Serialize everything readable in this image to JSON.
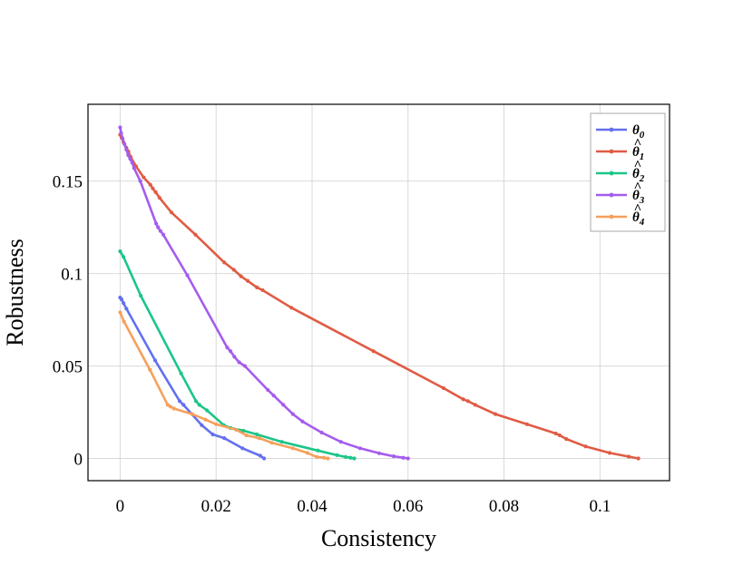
{
  "chart_data": {
    "type": "line",
    "xlabel": "Consistency",
    "ylabel": "Robustness",
    "xlim": [
      -0.0067,
      0.1145
    ],
    "ylim": [
      -0.012,
      0.1915
    ],
    "xticks": [
      0,
      0.02,
      0.04,
      0.06,
      0.08,
      0.1
    ],
    "xtick_labels": [
      "0",
      "0.02",
      "0.04",
      "0.06",
      "0.08",
      "0.1"
    ],
    "yticks": [
      0,
      0.05,
      0.1,
      0.15
    ],
    "ytick_labels": [
      "0",
      "0.05",
      "0.1",
      "0.15"
    ],
    "grid": true,
    "legend_position": "top-right",
    "series": [
      {
        "name": "θ0",
        "symbol": "θ",
        "hat": false,
        "sub": "0",
        "color": "#6470ef",
        "x": [
          0,
          0.0003,
          0.0007,
          0.0013,
          0.0073,
          0.0124,
          0.0132,
          0.017,
          0.0193,
          0.0217,
          0.0255,
          0.0292,
          0.03
        ],
        "y": [
          0.087,
          0.086,
          0.084,
          0.081,
          0.053,
          0.031,
          0.029,
          0.018,
          0.013,
          0.011,
          0.0055,
          0.0015,
          0.0
        ]
      },
      {
        "name": "θ̂1",
        "symbol": "θ",
        "hat": true,
        "sub": "1",
        "color": "#e05b44",
        "x": [
          0,
          0.0003,
          0.0007,
          0.0013,
          0.0017,
          0.0022,
          0.0033,
          0.0049,
          0.0063,
          0.0068,
          0.0074,
          0.0082,
          0.0107,
          0.0157,
          0.0217,
          0.0237,
          0.0252,
          0.0266,
          0.0285,
          0.0297,
          0.0357,
          0.0528,
          0.0674,
          0.0715,
          0.0725,
          0.074,
          0.0782,
          0.0848,
          0.0908,
          0.0916,
          0.093,
          0.097,
          0.102,
          0.106,
          0.108
        ],
        "y": [
          0.175,
          0.1735,
          0.171,
          0.168,
          0.166,
          0.163,
          0.158,
          0.152,
          0.148,
          0.146,
          0.144,
          0.141,
          0.133,
          0.121,
          0.106,
          0.102,
          0.0985,
          0.096,
          0.0925,
          0.091,
          0.0815,
          0.058,
          0.038,
          0.032,
          0.031,
          0.029,
          0.024,
          0.0185,
          0.0135,
          0.0125,
          0.0105,
          0.0065,
          0.003,
          0.001,
          0.0
        ]
      },
      {
        "name": "θ̂2",
        "symbol": "θ",
        "hat": true,
        "sub": "2",
        "color": "#1bc687",
        "x": [
          0,
          0.0007,
          0.0043,
          0.0127,
          0.0158,
          0.0165,
          0.0181,
          0.0216,
          0.023,
          0.0257,
          0.0285,
          0.0337,
          0.0412,
          0.0452,
          0.047,
          0.048,
          0.0488
        ],
        "y": [
          0.112,
          0.109,
          0.088,
          0.046,
          0.031,
          0.029,
          0.026,
          0.018,
          0.0165,
          0.015,
          0.013,
          0.009,
          0.0043,
          0.0018,
          0.0008,
          0.0004,
          0.0
        ]
      },
      {
        "name": "θ̂3",
        "symbol": "θ",
        "hat": true,
        "sub": "3",
        "color": "#a55cee",
        "x": [
          0,
          0.0002,
          0.0005,
          0.0009,
          0.0013,
          0.0017,
          0.0021,
          0.0025,
          0.0029,
          0.0042,
          0.0075,
          0.0079,
          0.0084,
          0.009,
          0.014,
          0.0223,
          0.023,
          0.0238,
          0.0248,
          0.026,
          0.0308,
          0.032,
          0.034,
          0.036,
          0.038,
          0.042,
          0.046,
          0.05,
          0.054,
          0.057,
          0.059,
          0.06
        ],
        "y": [
          0.179,
          0.176,
          0.173,
          0.17,
          0.167,
          0.164,
          0.162,
          0.16,
          0.157,
          0.15,
          0.127,
          0.125,
          0.123,
          0.121,
          0.099,
          0.06,
          0.058,
          0.055,
          0.052,
          0.05,
          0.037,
          0.034,
          0.029,
          0.024,
          0.02,
          0.014,
          0.009,
          0.0055,
          0.0028,
          0.0012,
          0.0004,
          0.0
        ]
      },
      {
        "name": "θ̂4",
        "symbol": "θ",
        "hat": true,
        "sub": "4",
        "color": "#f6a05c",
        "x": [
          0,
          0.0008,
          0.0062,
          0.0099,
          0.0105,
          0.0112,
          0.015,
          0.0178,
          0.02,
          0.0242,
          0.0263,
          0.029,
          0.0316,
          0.036,
          0.039,
          0.041,
          0.0425,
          0.0433
        ],
        "y": [
          0.079,
          0.074,
          0.048,
          0.029,
          0.028,
          0.027,
          0.024,
          0.021,
          0.0185,
          0.0155,
          0.0125,
          0.011,
          0.0085,
          0.0055,
          0.003,
          0.0008,
          0.0004,
          0.0
        ]
      }
    ]
  }
}
